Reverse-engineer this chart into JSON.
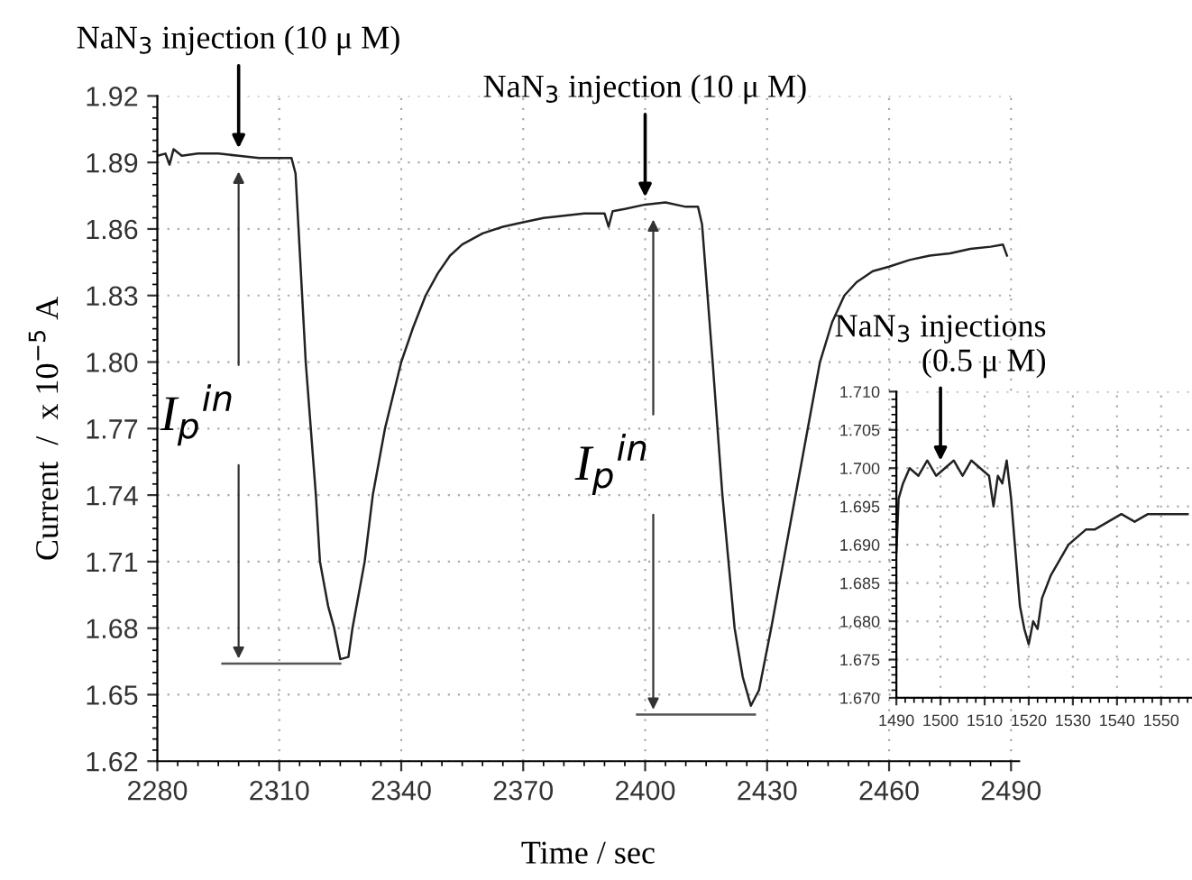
{
  "chart_data": [
    {
      "type": "line",
      "xlabel": "Time / sec",
      "ylabel": "Current  /  x 10$^{−5}$ A",
      "xlim": [
        2280,
        2492
      ],
      "xticks": [
        2280,
        2310,
        2340,
        2370,
        2400,
        2430,
        2460,
        2490
      ],
      "ylim": [
        1.62,
        1.92
      ],
      "yticks": [
        1.62,
        1.65,
        1.68,
        1.71,
        1.74,
        1.77,
        {
          "value": 1.8,
          "label": "1.80"
        },
        1.83,
        1.86,
        1.89,
        1.92
      ],
      "grid": true,
      "legend": false,
      "marker": "none",
      "line_style": "solid",
      "series": [
        {
          "color": "#222222",
          "x": [
            2280,
            2282,
            2283,
            2284,
            2286,
            2290,
            2295,
            2300,
            2305,
            2310,
            2313,
            2314,
            2316.5,
            2319,
            2320,
            2322,
            2323.5,
            2325,
            2327,
            2328,
            2331,
            2333,
            2336,
            2340,
            2343,
            2346,
            2349,
            2352,
            2355,
            2360,
            2365,
            2370,
            2375,
            2380,
            2385,
            2390,
            2391,
            2392,
            2395,
            2400,
            2405,
            2410,
            2413,
            2414,
            2416.6,
            2419,
            2422,
            2424,
            2426,
            2428,
            2431,
            2434,
            2437,
            2440,
            2443,
            2446,
            2449,
            2452,
            2456,
            2460,
            2465,
            2470,
            2475,
            2480,
            2485,
            2488,
            2489
          ],
          "values": [
            1.893,
            1.894,
            1.889,
            1.896,
            1.893,
            1.894,
            1.894,
            1.893,
            1.892,
            1.892,
            1.892,
            1.885,
            1.8,
            1.74,
            1.71,
            1.69,
            1.68,
            1.666,
            1.667,
            1.68,
            1.71,
            1.74,
            1.77,
            1.8,
            1.816,
            1.83,
            1.84,
            1.848,
            1.853,
            1.858,
            1.861,
            1.863,
            1.865,
            1.866,
            1.867,
            1.867,
            1.861,
            1.868,
            1.869,
            1.871,
            1.872,
            1.87,
            1.87,
            1.862,
            1.8,
            1.74,
            1.68,
            1.658,
            1.645,
            1.652,
            1.68,
            1.71,
            1.74,
            1.77,
            1.8,
            1.818,
            1.83,
            1.836,
            1.841,
            1.843,
            1.846,
            1.848,
            1.849,
            1.851,
            1.852,
            1.853,
            1.848
          ]
        },
        {
          "color": "#555555",
          "x": [
            2296,
            2325
          ],
          "values": [
            1.664,
            1.664
          ]
        },
        {
          "color": "#555555",
          "x": [
            2398,
            2427
          ],
          "values": [
            1.641,
            1.641
          ]
        }
      ],
      "annotations": [
        {
          "text": "NaN$_{3}$ injection (10 μ M)",
          "x": 2300,
          "y": 1.893
        },
        {
          "text": "NaN$_{3}$ injection (10 μ M)",
          "x": 2400,
          "y": 1.871
        },
        "I$_{p}$$^{in}$",
        "I$_{p}$$^{in}$"
      ]
    },
    {
      "type": "line",
      "xlim": [
        1490,
        1557
      ],
      "xticks": [
        1490,
        1500,
        1510,
        1520,
        1530,
        1540,
        1550
      ],
      "ylim": [
        1.67,
        1.71
      ],
      "yticks": [
        {
          "value": 1.67,
          "label": "1.670"
        },
        1.675,
        {
          "value": 1.68,
          "label": "1.680"
        },
        1.685,
        {
          "value": 1.69,
          "label": "1.690"
        },
        1.695,
        {
          "value": 1.7,
          "label": "1.700"
        },
        1.705,
        {
          "value": 1.71,
          "label": "1.710"
        }
      ],
      "grid": true,
      "legend": false,
      "marker": "none",
      "line_style": "solid",
      "series": [
        {
          "color": "#222222",
          "x": [
            1490,
            1490.5,
            1491.5,
            1493,
            1495,
            1497,
            1499,
            1501,
            1503,
            1505,
            1507,
            1509,
            1511,
            1512,
            1513,
            1514,
            1515,
            1516,
            1517,
            1518,
            1519,
            1520,
            1521,
            1522,
            1523,
            1525,
            1527,
            1529,
            1531,
            1533,
            1535,
            1538,
            1541,
            1544,
            1547,
            1550,
            1553,
            1556
          ],
          "values": [
            1.689,
            1.696,
            1.698,
            1.7,
            1.699,
            1.701,
            1.699,
            1.7,
            1.701,
            1.699,
            1.701,
            1.7,
            1.699,
            1.695,
            1.699,
            1.698,
            1.701,
            1.696,
            1.689,
            1.682,
            1.679,
            1.677,
            1.68,
            1.679,
            1.683,
            1.686,
            1.688,
            1.69,
            1.691,
            1.692,
            1.692,
            1.693,
            1.694,
            1.693,
            1.694,
            1.694,
            1.694,
            1.694
          ]
        }
      ],
      "annotations": [
        {
          "text": "NaN$_{3}$ injections\n(0.5 μ M)",
          "x": 1500,
          "y": 1.7
        }
      ]
    }
  ]
}
